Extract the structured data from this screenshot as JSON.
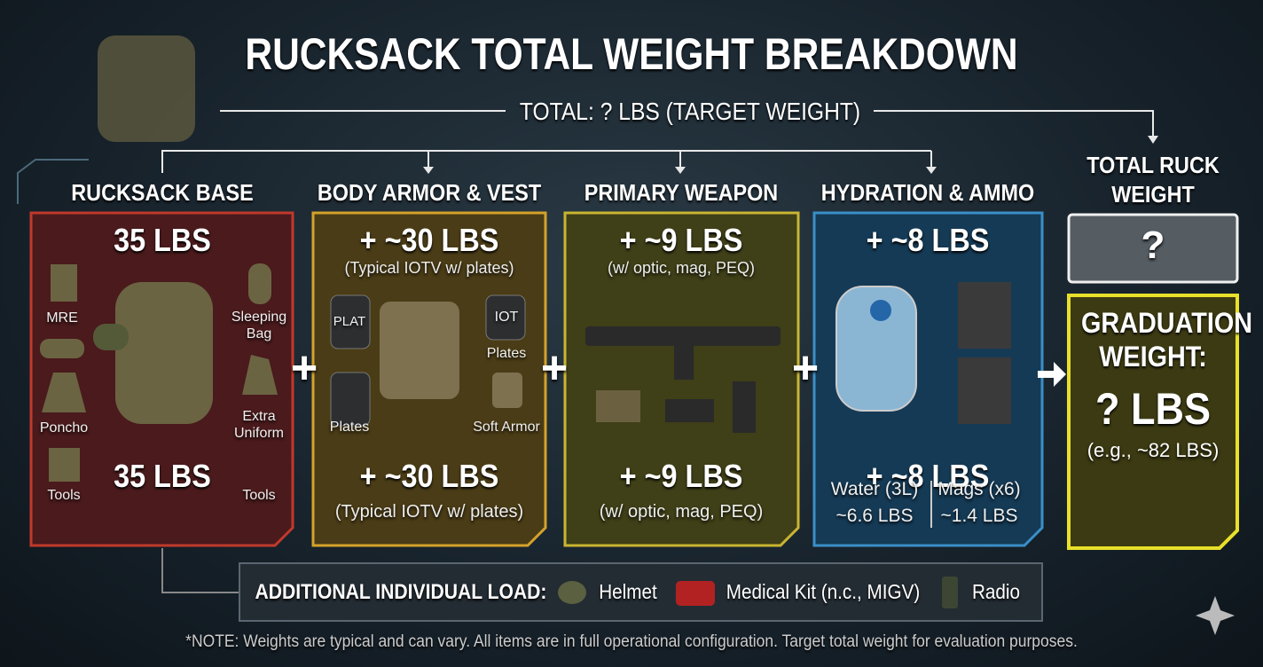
{
  "title": "RUCKSACK TOTAL WEIGHT BREAKDOWN",
  "total_label": "TOTAL: ? LBS (TARGET WEIGHT)",
  "panels": [
    {
      "title": "RUCKSACK BASE",
      "weight": "35 LBS",
      "weight_bottom": "35 LBS",
      "items": [
        "MRE",
        "Sleeping Bag",
        "Poncho",
        "Extra Uniform",
        "Tools",
        "Tools"
      ]
    },
    {
      "title": "BODY ARMOR & VEST",
      "weight": "+ ~30 LBS",
      "note": "(Typical IOTV w/ plates)",
      "weight_bottom": "+ ~30 LBS",
      "note_bottom": "(Typical IOTV w/ plates)",
      "items": [
        "PLAT",
        "IOT",
        "Plates",
        "Plates",
        "Soft Armor"
      ]
    },
    {
      "title": "PRIMARY WEAPON",
      "weight": "+ ~9 LBS",
      "note": "(w/ optic, mag, PEQ)",
      "weight_bottom": "+ ~9 LBS",
      "note_bottom": "(w/ optic, mag, PEQ)"
    },
    {
      "title": "HYDRATION & AMMO",
      "weight": "+ ~8 LBS",
      "weight_bottom": "+ ~8 LBS",
      "items": [
        "Water (3L)",
        "~6.6 LBS",
        "Mags (x6)",
        "~1.4 LBS"
      ]
    }
  ],
  "operators": [
    "+",
    "+",
    "+"
  ],
  "summary": {
    "title": "TOTAL RUCK WEIGHT",
    "total": "?",
    "graduation_label": "GRADUATION WEIGHT:",
    "graduation_value": "? LBS",
    "example": "(e.g., ~82 LBS)"
  },
  "additional": {
    "label": "ADDITIONAL INDIVIDUAL LOAD:",
    "items": [
      "Helmet",
      "Medical Kit (n.c., MIGV)",
      "Radio"
    ]
  },
  "footnote": "*NOTE: Weights are typical and can vary. All items are in full operational configuration. Target total weight for evaluation purposes."
}
